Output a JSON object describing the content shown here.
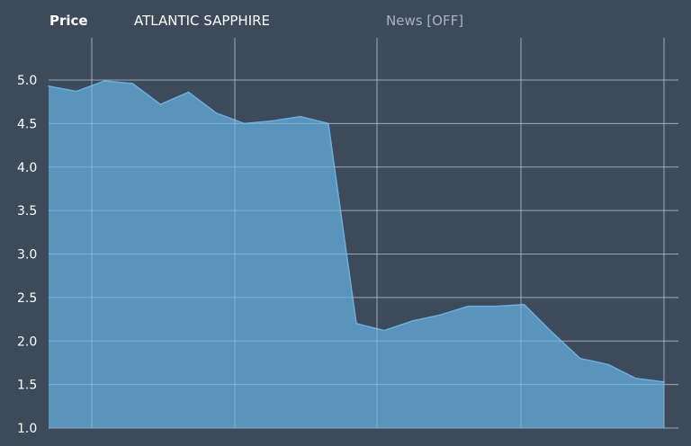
{
  "header": {
    "price_label": "Price",
    "instrument": "ATLANTIC SAPPHIRE",
    "news_toggle": "News [OFF]"
  },
  "colors": {
    "background": "#3d4a5a",
    "grid": "#9aa4ae",
    "area_fill": "#5a98c2",
    "area_line": "#6aaee0",
    "text": "#ffffff"
  },
  "chart_data": {
    "type": "area",
    "title": "",
    "xlabel": "",
    "ylabel": "",
    "ylim": [
      1.0,
      5.3
    ],
    "yticks": [
      "5.0",
      "4.5",
      "4.0",
      "3.5",
      "3.0",
      "2.5",
      "2.0",
      "1.5",
      "1.0"
    ],
    "grid": true,
    "x_tick_labels": [],
    "series": [
      {
        "values": [
          4.93,
          4.87,
          4.99,
          4.96,
          4.72,
          4.86,
          4.62,
          4.5,
          4.53,
          4.58,
          4.5,
          2.2,
          2.12,
          2.23,
          2.3,
          2.4,
          2.4,
          2.42,
          2.1,
          1.8,
          1.73,
          1.57,
          1.53
        ]
      }
    ]
  }
}
